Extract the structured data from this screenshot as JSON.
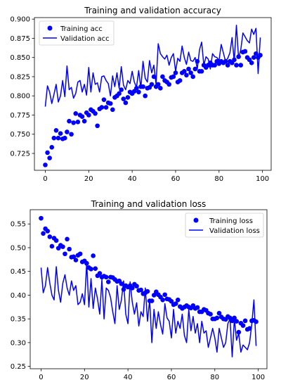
{
  "chart_data": [
    {
      "type": "line",
      "title": "Training and validation accuracy",
      "xlabel": "",
      "ylabel": "",
      "xlim": [
        -5,
        104
      ],
      "ylim": [
        0.703,
        0.902
      ],
      "xticks": [
        0,
        20,
        40,
        60,
        80,
        100
      ],
      "yticks": [
        0.725,
        0.75,
        0.775,
        0.8,
        0.825,
        0.85,
        0.875,
        0.9
      ],
      "ytick_labels": [
        "0.725",
        "0.750",
        "0.775",
        "0.800",
        "0.825",
        "0.850",
        "0.875",
        "0.900"
      ],
      "grid": false,
      "legend_position": "top-left",
      "series": [
        {
          "name": "Training acc",
          "style": "points",
          "color": "#0000ff",
          "x": [
            0,
            1,
            2,
            3,
            4,
            5,
            6,
            7,
            8,
            9,
            10,
            11,
            12,
            13,
            14,
            15,
            16,
            17,
            18,
            19,
            20,
            21,
            22,
            23,
            24,
            25,
            26,
            27,
            28,
            29,
            30,
            31,
            32,
            33,
            34,
            35,
            36,
            37,
            38,
            39,
            40,
            41,
            42,
            43,
            44,
            45,
            46,
            47,
            48,
            49,
            50,
            51,
            52,
            53,
            54,
            55,
            56,
            57,
            58,
            59,
            60,
            61,
            62,
            63,
            64,
            65,
            66,
            67,
            68,
            69,
            70,
            71,
            72,
            73,
            74,
            75,
            76,
            77,
            78,
            79,
            80,
            81,
            82,
            83,
            84,
            85,
            86,
            87,
            88,
            89,
            90,
            91,
            92,
            93,
            94,
            95,
            96,
            97,
            98,
            99
          ],
          "values": [
            0.71,
            0.726,
            0.719,
            0.733,
            0.745,
            0.755,
            0.745,
            0.751,
            0.744,
            0.745,
            0.753,
            0.767,
            0.75,
            0.765,
            0.777,
            0.766,
            0.775,
            0.773,
            0.767,
            0.778,
            0.775,
            0.782,
            0.78,
            0.777,
            0.761,
            0.783,
            0.785,
            0.795,
            0.785,
            0.791,
            0.79,
            0.782,
            0.798,
            0.8,
            0.803,
            0.808,
            0.796,
            0.791,
            0.798,
            0.805,
            0.803,
            0.806,
            0.81,
            0.805,
            0.812,
            0.812,
            0.8,
            0.81,
            0.811,
            0.815,
            0.825,
            0.812,
            0.815,
            0.81,
            0.825,
            0.82,
            0.818,
            0.815,
            0.824,
            0.825,
            0.83,
            0.818,
            0.82,
            0.83,
            0.832,
            0.827,
            0.835,
            0.83,
            0.825,
            0.835,
            0.845,
            0.832,
            0.832,
            0.84,
            0.837,
            0.84,
            0.843,
            0.84,
            0.84,
            0.845,
            0.842,
            0.845,
            0.843,
            0.845,
            0.84,
            0.845,
            0.843,
            0.847,
            0.84,
            0.851,
            0.84,
            0.857,
            0.858,
            0.85,
            0.847,
            0.843,
            0.85,
            0.855,
            0.85,
            0.853
          ]
        },
        {
          "name": "Validation acc",
          "style": "line",
          "color": "#0000ff",
          "x": [
            0,
            1,
            2,
            3,
            4,
            5,
            6,
            7,
            8,
            9,
            10,
            11,
            12,
            13,
            14,
            15,
            16,
            17,
            18,
            19,
            20,
            21,
            22,
            23,
            24,
            25,
            26,
            27,
            28,
            29,
            30,
            31,
            32,
            33,
            34,
            35,
            36,
            37,
            38,
            39,
            40,
            41,
            42,
            43,
            44,
            45,
            46,
            47,
            48,
            49,
            50,
            51,
            52,
            53,
            54,
            55,
            56,
            57,
            58,
            59,
            60,
            61,
            62,
            63,
            64,
            65,
            66,
            67,
            68,
            69,
            70,
            71,
            72,
            73,
            74,
            75,
            76,
            77,
            78,
            79,
            80,
            81,
            82,
            83,
            84,
            85,
            86,
            87,
            88,
            89,
            90,
            91,
            92,
            93,
            94,
            95,
            96,
            97,
            98,
            99
          ],
          "values": [
            0.786,
            0.813,
            0.805,
            0.79,
            0.802,
            0.815,
            0.792,
            0.8,
            0.82,
            0.799,
            0.839,
            0.808,
            0.811,
            0.797,
            0.803,
            0.818,
            0.82,
            0.805,
            0.815,
            0.801,
            0.837,
            0.805,
            0.83,
            0.815,
            0.817,
            0.805,
            0.825,
            0.826,
            0.82,
            0.816,
            0.8,
            0.826,
            0.812,
            0.83,
            0.81,
            0.838,
            0.814,
            0.808,
            0.82,
            0.816,
            0.832,
            0.818,
            0.811,
            0.833,
            0.81,
            0.845,
            0.823,
            0.818,
            0.846,
            0.83,
            0.84,
            0.815,
            0.868,
            0.855,
            0.851,
            0.848,
            0.853,
            0.84,
            0.85,
            0.855,
            0.832,
            0.849,
            0.845,
            0.865,
            0.85,
            0.841,
            0.857,
            0.846,
            0.845,
            0.85,
            0.835,
            0.86,
            0.87,
            0.84,
            0.851,
            0.848,
            0.835,
            0.855,
            0.851,
            0.85,
            0.846,
            0.867,
            0.856,
            0.845,
            0.849,
            0.856,
            0.876,
            0.845,
            0.892,
            0.849,
            0.86,
            0.882,
            0.877,
            0.872,
            0.869,
            0.887,
            0.88,
            0.888,
            0.829,
            0.876
          ]
        }
      ]
    },
    {
      "type": "line",
      "title": "Training and validation loss",
      "xlabel": "",
      "ylabel": "",
      "xlim": [
        -5,
        104
      ],
      "ylim": [
        0.245,
        0.58
      ],
      "xticks": [
        0,
        20,
        40,
        60,
        80,
        100
      ],
      "yticks": [
        0.25,
        0.3,
        0.35,
        0.4,
        0.45,
        0.5,
        0.55
      ],
      "ytick_labels": [
        "0.25",
        "0.30",
        "0.35",
        "0.40",
        "0.45",
        "0.50",
        "0.55"
      ],
      "grid": false,
      "legend_position": "top-right",
      "series": [
        {
          "name": "Training loss",
          "style": "points",
          "color": "#0000ff",
          "x": [
            0,
            1,
            2,
            3,
            4,
            5,
            6,
            7,
            8,
            9,
            10,
            11,
            12,
            13,
            14,
            15,
            16,
            17,
            18,
            19,
            20,
            21,
            22,
            23,
            24,
            25,
            26,
            27,
            28,
            29,
            30,
            31,
            32,
            33,
            34,
            35,
            36,
            37,
            38,
            39,
            40,
            41,
            42,
            43,
            44,
            45,
            46,
            47,
            48,
            49,
            50,
            51,
            52,
            53,
            54,
            55,
            56,
            57,
            58,
            59,
            60,
            61,
            62,
            63,
            64,
            65,
            66,
            67,
            68,
            69,
            70,
            71,
            72,
            73,
            74,
            75,
            76,
            77,
            78,
            79,
            80,
            81,
            82,
            83,
            84,
            85,
            86,
            87,
            88,
            89,
            90,
            91,
            92,
            93,
            94,
            95,
            96,
            97,
            98,
            99
          ],
          "values": [
            0.562,
            0.53,
            0.54,
            0.535,
            0.523,
            0.503,
            0.52,
            0.515,
            0.499,
            0.505,
            0.502,
            0.487,
            0.518,
            0.497,
            0.48,
            0.481,
            0.474,
            0.484,
            0.487,
            0.47,
            0.472,
            0.467,
            0.458,
            0.455,
            0.483,
            0.456,
            0.441,
            0.446,
            0.438,
            0.44,
            0.438,
            0.428,
            0.438,
            0.437,
            0.433,
            0.429,
            0.43,
            0.424,
            0.412,
            0.42,
            0.417,
            0.42,
            0.415,
            0.423,
            0.419,
            0.41,
            0.411,
            0.403,
            0.405,
            0.408,
            0.388,
            0.388,
            0.4,
            0.407,
            0.401,
            0.396,
            0.39,
            0.401,
            0.392,
            0.391,
            0.387,
            0.38,
            0.382,
            0.39,
            0.376,
            0.372,
            0.375,
            0.378,
            0.375,
            0.373,
            0.378,
            0.372,
            0.374,
            0.365,
            0.365,
            0.37,
            0.368,
            0.362,
            0.36,
            0.35,
            0.35,
            0.352,
            0.362,
            0.354,
            0.35,
            0.349,
            0.355,
            0.352,
            0.346,
            0.352,
            0.345,
            0.322,
            0.341,
            0.336,
            0.346,
            0.328,
            0.33,
            0.346,
            0.347,
            0.344
          ]
        },
        {
          "name": "Validation loss",
          "style": "line",
          "color": "#0000ff",
          "x": [
            0,
            1,
            2,
            3,
            4,
            5,
            6,
            7,
            8,
            9,
            10,
            11,
            12,
            13,
            14,
            15,
            16,
            17,
            18,
            19,
            20,
            21,
            22,
            23,
            24,
            25,
            26,
            27,
            28,
            29,
            30,
            31,
            32,
            33,
            34,
            35,
            36,
            37,
            38,
            39,
            40,
            41,
            42,
            43,
            44,
            45,
            46,
            47,
            48,
            49,
            50,
            51,
            52,
            53,
            54,
            55,
            56,
            57,
            58,
            59,
            60,
            61,
            62,
            63,
            64,
            65,
            66,
            67,
            68,
            69,
            70,
            71,
            72,
            73,
            74,
            75,
            76,
            77,
            78,
            79,
            80,
            81,
            82,
            83,
            84,
            85,
            86,
            87,
            88,
            89,
            90,
            91,
            92,
            93,
            94,
            95,
            96,
            97,
            98,
            99
          ],
          "values": [
            0.458,
            0.405,
            0.42,
            0.458,
            0.426,
            0.4,
            0.39,
            0.46,
            0.41,
            0.385,
            0.425,
            0.443,
            0.415,
            0.4,
            0.43,
            0.41,
            0.42,
            0.38,
            0.385,
            0.403,
            0.38,
            0.468,
            0.375,
            0.435,
            0.372,
            0.415,
            0.392,
            0.36,
            0.433,
            0.35,
            0.415,
            0.41,
            0.395,
            0.365,
            0.34,
            0.42,
            0.37,
            0.39,
            0.43,
            0.36,
            0.34,
            0.428,
            0.385,
            0.36,
            0.384,
            0.335,
            0.365,
            0.355,
            0.415,
            0.345,
            0.39,
            0.3,
            0.37,
            0.33,
            0.365,
            0.338,
            0.318,
            0.382,
            0.352,
            0.345,
            0.31,
            0.37,
            0.32,
            0.345,
            0.33,
            0.36,
            0.315,
            0.3,
            0.37,
            0.325,
            0.355,
            0.32,
            0.34,
            0.3,
            0.345,
            0.32,
            0.325,
            0.29,
            0.31,
            0.33,
            0.31,
            0.28,
            0.33,
            0.31,
            0.29,
            0.3,
            0.34,
            0.35,
            0.27,
            0.35,
            0.305,
            0.32,
            0.28,
            0.295,
            0.29,
            0.285,
            0.3,
            0.338,
            0.39,
            0.293
          ]
        }
      ]
    }
  ]
}
